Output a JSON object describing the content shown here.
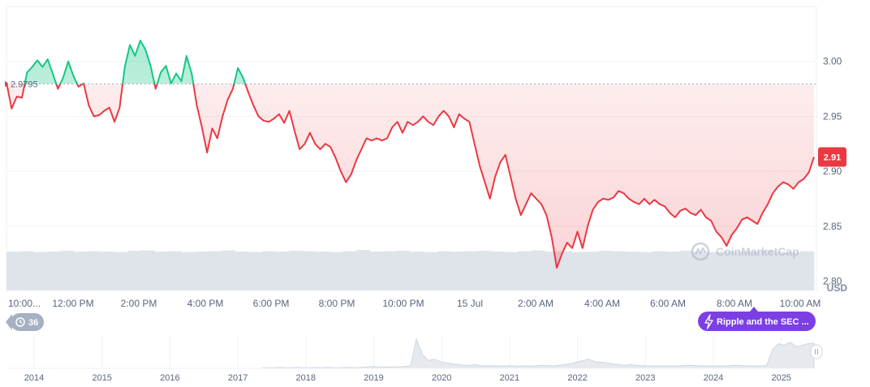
{
  "chart_data": {
    "type": "area",
    "baseline_value": 2.9795,
    "baseline_label": "2.9795",
    "current_value_label": "2.91",
    "currency_label": "USD",
    "watermark": "CoinMarketCap",
    "ylim": [
      2.79,
      3.05
    ],
    "y_ticks": [
      {
        "label": "3.00",
        "value": 3.0
      },
      {
        "label": "2.95",
        "value": 2.95
      },
      {
        "label": "2.90",
        "value": 2.9
      },
      {
        "label": "2.85",
        "value": 2.85
      },
      {
        "label": "2.80",
        "value": 2.8
      }
    ],
    "x_tick_labels": [
      "10:00...",
      "12:00 PM",
      "2:00 PM",
      "4:00 PM",
      "6:00 PM",
      "8:00 PM",
      "10:00 PM",
      "15 Jul",
      "2:00 AM",
      "4:00 AM",
      "6:00 AM",
      "8:00 AM",
      "10:00 AM"
    ],
    "y": [
      2.981,
      2.957,
      2.968,
      2.967,
      2.99,
      2.995,
      3.001,
      2.995,
      3.002,
      2.989,
      2.975,
      2.985,
      3.0,
      2.987,
      2.977,
      2.98,
      2.96,
      2.95,
      2.951,
      2.955,
      2.958,
      2.945,
      2.958,
      2.995,
      3.015,
      3.005,
      3.019,
      3.011,
      2.996,
      2.975,
      2.99,
      2.996,
      2.98,
      2.989,
      2.982,
      3.005,
      2.989,
      2.96,
      2.94,
      2.917,
      2.939,
      2.93,
      2.95,
      2.965,
      2.975,
      2.994,
      2.985,
      2.972,
      2.96,
      2.95,
      2.946,
      2.945,
      2.948,
      2.952,
      2.944,
      2.955,
      2.937,
      2.92,
      2.925,
      2.935,
      2.925,
      2.92,
      2.925,
      2.922,
      2.912,
      2.9,
      2.89,
      2.897,
      2.91,
      2.92,
      2.93,
      2.928,
      2.93,
      2.928,
      2.93,
      2.94,
      2.945,
      2.935,
      2.945,
      2.942,
      2.945,
      2.95,
      2.945,
      2.942,
      2.95,
      2.955,
      2.95,
      2.94,
      2.952,
      2.948,
      2.945,
      2.925,
      2.905,
      2.89,
      2.875,
      2.895,
      2.908,
      2.915,
      2.895,
      2.875,
      2.86,
      2.87,
      2.88,
      2.875,
      2.87,
      2.86,
      2.84,
      2.812,
      2.825,
      2.835,
      2.83,
      2.845,
      2.83,
      2.85,
      2.865,
      2.872,
      2.875,
      2.874,
      2.876,
      2.882,
      2.88,
      2.875,
      2.872,
      2.87,
      2.875,
      2.87,
      2.874,
      2.87,
      2.868,
      2.862,
      2.858,
      2.864,
      2.866,
      2.862,
      2.86,
      2.865,
      2.858,
      2.855,
      2.845,
      2.84,
      2.832,
      2.842,
      2.848,
      2.856,
      2.858,
      2.855,
      2.852,
      2.862,
      2.87,
      2.88,
      2.886,
      2.89,
      2.888,
      2.884,
      2.89,
      2.893,
      2.899,
      2.913
    ]
  },
  "volume": {
    "values": [
      0.92,
      0.93,
      0.91,
      0.92,
      0.94,
      0.92,
      0.93,
      0.92,
      0.91,
      0.94,
      0.95,
      0.92,
      0.93,
      0.91,
      0.92,
      0.93,
      0.95,
      0.92,
      0.91,
      0.93,
      0.92,
      0.94,
      0.93,
      0.92,
      0.91,
      0.93,
      0.96,
      0.92,
      0.93,
      0.94,
      0.92,
      0.91,
      0.93,
      0.92,
      0.93,
      0.94,
      0.92,
      0.91,
      0.93,
      0.95,
      0.92,
      0.93,
      0.91,
      0.92,
      0.94,
      0.93,
      0.92,
      0.91,
      0.93,
      0.92,
      0.94,
      0.92,
      0.91,
      0.93,
      0.92,
      0.93,
      0.95,
      0.92,
      0.91,
      0.93
    ]
  },
  "overview": {
    "year_labels": [
      "2014",
      "2015",
      "2016",
      "2017",
      "2018",
      "2019",
      "2020",
      "2021",
      "2022",
      "2023",
      "2024",
      "2025"
    ],
    "values": [
      0.02,
      0.02,
      0.02,
      0.03,
      0.02,
      0.02,
      0.03,
      0.02,
      0.02,
      0.03,
      0.02,
      0.03,
      0.02,
      0.02,
      0.03,
      0.03,
      0.02,
      0.04,
      0.05,
      0.06,
      0.04,
      0.05,
      0.04,
      0.05,
      0.06,
      0.08,
      0.95,
      0.45,
      0.25,
      0.3,
      0.22,
      0.18,
      0.15,
      0.12,
      0.1,
      0.1,
      0.12,
      0.08,
      0.09,
      0.08,
      0.07,
      0.08,
      0.09,
      0.07,
      0.08,
      0.07,
      0.08,
      0.1,
      0.09,
      0.08,
      0.1,
      0.12,
      0.15,
      0.2,
      0.25,
      0.3,
      0.22,
      0.2,
      0.18,
      0.15,
      0.12,
      0.1,
      0.12,
      0.1,
      0.09,
      0.08,
      0.07,
      0.08,
      0.07,
      0.08,
      0.08,
      0.09,
      0.1,
      0.09,
      0.08,
      0.07,
      0.08,
      0.08,
      0.07,
      0.09,
      0.1,
      0.09,
      0.08,
      0.07,
      0.08,
      0.09,
      0.6,
      0.8,
      0.75,
      0.85,
      0.7,
      0.75,
      0.8,
      0.82
    ]
  },
  "events_badge": {
    "icon": "history-icon",
    "count": "36"
  },
  "news_chip": {
    "icon": "lightning-icon",
    "label": "Ripple and the SEC ..."
  },
  "colors": {
    "up": "#16c784",
    "down": "#ea3943",
    "grid": "#eff2f5",
    "baseline": "#a6b0c3",
    "badge_bg": "#a6b0c3",
    "news_bg": "#7b3fe4"
  }
}
